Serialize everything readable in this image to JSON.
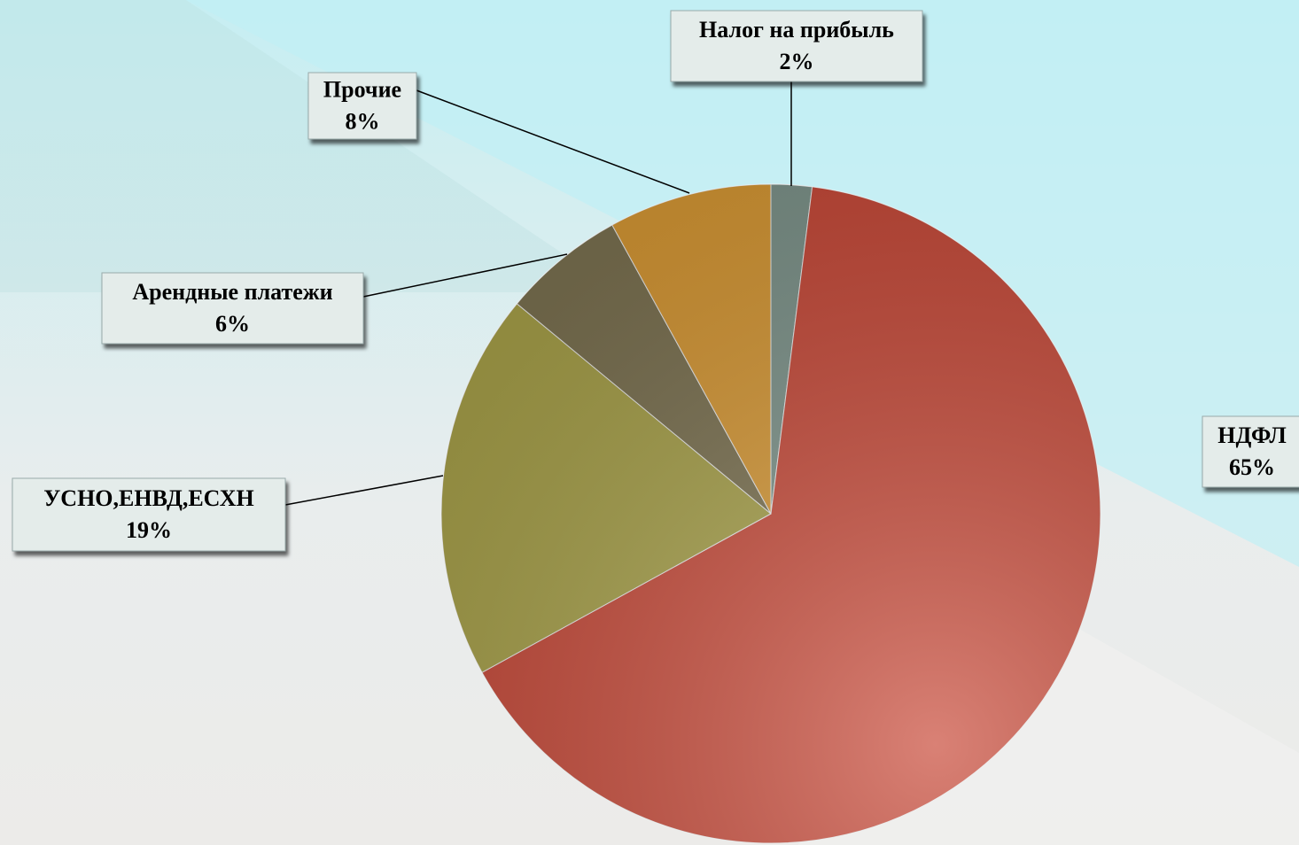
{
  "chart_data": {
    "type": "pie",
    "categories": [
      "Налог на прибыль",
      "НДФЛ",
      "УСНО,ЕНВД,ЕСХН",
      "Арендные платежи",
      "Прочие"
    ],
    "values": [
      2,
      65,
      19,
      6,
      8
    ],
    "value_labels": [
      "2%",
      "65%",
      "19%",
      "6%",
      "8%"
    ],
    "colors": [
      "#7f958c",
      "#c94b3a",
      "#a9a24a",
      "#7d7352",
      "#d99a36"
    ]
  }
}
